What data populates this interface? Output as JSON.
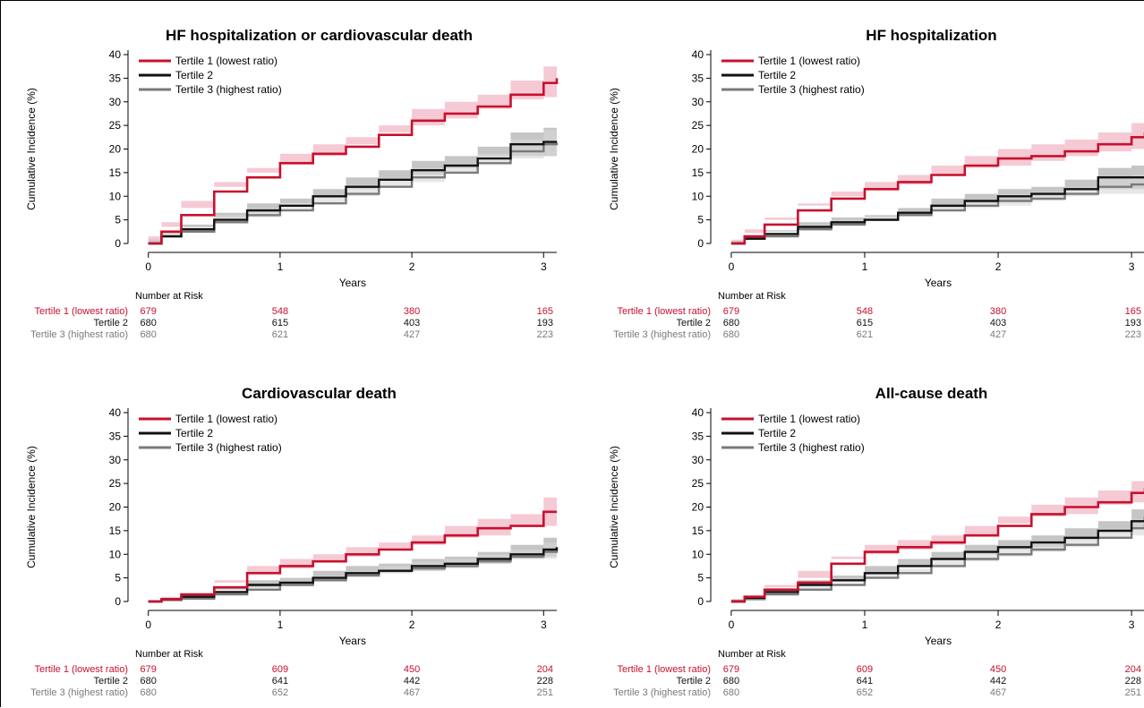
{
  "colors": {
    "tertile1": "#c8102e",
    "tertile1_band": "#f2b8c6",
    "tertile2": "#111111",
    "tertile2_band": "#9e9e9e",
    "tertile3": "#7a7a7a",
    "tertile3_band": "#d7d7d7",
    "axis": "#000000"
  },
  "chart_data": [
    {
      "type": "line",
      "title": "HF hospitalization or cardiovascular death",
      "xlabel": "Years",
      "ylabel": "Cumulative Incidence (%)",
      "xlim": [
        -0.1,
        3.1
      ],
      "ylim": [
        0,
        40
      ],
      "xticks": [
        "0",
        "1",
        "2",
        "3"
      ],
      "yticks": [
        "0",
        "5",
        "10",
        "15",
        "20",
        "25",
        "30",
        "35",
        "40"
      ],
      "legend_position": "top-left",
      "series": [
        {
          "name": "Tertile 1 (lowest ratio)",
          "x": [
            0,
            0.1,
            0.25,
            0.5,
            0.75,
            1.0,
            1.25,
            1.5,
            1.75,
            2.0,
            2.25,
            2.5,
            2.75,
            3.0,
            3.1
          ],
          "y": [
            0,
            2.5,
            6,
            11,
            14,
            17,
            19,
            20.5,
            23,
            26,
            27.5,
            29,
            31.5,
            34,
            35
          ],
          "lower": [
            0,
            1.5,
            4.5,
            9,
            12,
            15,
            17,
            18.5,
            21,
            23.5,
            25,
            26.5,
            28.5,
            30.5,
            31
          ],
          "upper": [
            0,
            3.5,
            7.5,
            13,
            16,
            19,
            21,
            22.5,
            25,
            28.5,
            30,
            31.5,
            34.5,
            37.5,
            39
          ]
        },
        {
          "name": "Tertile 2",
          "x": [
            0,
            0.1,
            0.25,
            0.5,
            0.75,
            1.0,
            1.25,
            1.5,
            1.75,
            2.0,
            2.25,
            2.5,
            2.75,
            3.0,
            3.1
          ],
          "y": [
            0,
            1.5,
            3,
            5,
            7,
            8,
            10,
            12,
            13.5,
            15.5,
            16.5,
            18,
            21,
            21.5,
            21.5
          ],
          "lower": [
            0,
            0.8,
            2,
            3.5,
            5.5,
            6.5,
            8.5,
            10,
            11.5,
            13.5,
            14.5,
            16,
            18.5,
            18.5,
            18.5
          ],
          "upper": [
            0,
            2.2,
            4,
            6.5,
            8.5,
            9.5,
            11.5,
            14,
            15.5,
            17.5,
            18.5,
            20.5,
            23.5,
            24.5,
            25
          ]
        },
        {
          "name": "Tertile 3 (highest ratio)",
          "x": [
            0,
            0.1,
            0.25,
            0.5,
            0.75,
            1.0,
            1.25,
            1.5,
            1.75,
            2.0,
            2.25,
            2.5,
            2.75,
            3.0,
            3.1
          ],
          "y": [
            0,
            1.5,
            2.5,
            4.5,
            6,
            7,
            8.5,
            10.5,
            12,
            14,
            15,
            17,
            19.5,
            21,
            21.5
          ],
          "lower": [
            0,
            0.8,
            1.5,
            3,
            4.5,
            5.5,
            7,
            8.5,
            10,
            12,
            13,
            15,
            17,
            18,
            18.5
          ],
          "upper": [
            0,
            2.2,
            3.5,
            6,
            7.5,
            8.5,
            10,
            12.5,
            14,
            16,
            17,
            19,
            22,
            24,
            24.5
          ]
        }
      ],
      "risk_table": {
        "header": "Number at Risk",
        "rows": [
          {
            "label": "Tertile 1 (lowest ratio)",
            "values": [
              "679",
              "548",
              "380",
              "165"
            ]
          },
          {
            "label": "Tertile 2",
            "values": [
              "680",
              "615",
              "403",
              "193"
            ]
          },
          {
            "label": "Tertile 3 (highest ratio)",
            "values": [
              "680",
              "621",
              "427",
              "223"
            ]
          }
        ]
      }
    },
    {
      "type": "line",
      "title": "HF hospitalization",
      "xlabel": "Years",
      "ylabel": "Cumulative Incidence (%)",
      "xlim": [
        -0.1,
        3.1
      ],
      "ylim": [
        0,
        40
      ],
      "xticks": [
        "0",
        "1",
        "2",
        "3"
      ],
      "yticks": [
        "0",
        "5",
        "10",
        "15",
        "20",
        "25",
        "30",
        "35",
        "40"
      ],
      "legend_position": "top-left",
      "series": [
        {
          "name": "Tertile 1 (lowest ratio)",
          "x": [
            0,
            0.1,
            0.25,
            0.5,
            0.75,
            1.0,
            1.25,
            1.5,
            1.75,
            2.0,
            2.25,
            2.5,
            2.75,
            3.0,
            3.1
          ],
          "y": [
            0,
            1.5,
            4,
            7,
            9.5,
            11.5,
            13,
            14.5,
            16.5,
            18,
            18.5,
            19.5,
            21,
            22.5,
            23.5
          ],
          "lower": [
            0,
            0.8,
            3,
            5.5,
            8,
            10,
            11.5,
            12.5,
            14.5,
            16,
            16.5,
            17.5,
            18.5,
            19.5,
            20
          ],
          "upper": [
            0,
            2.2,
            5,
            8.5,
            11,
            13,
            14.5,
            16.5,
            18.5,
            20,
            21,
            22,
            23.5,
            25.5,
            27
          ]
        },
        {
          "name": "Tertile 2",
          "x": [
            0,
            0.1,
            0.25,
            0.5,
            0.75,
            1.0,
            1.25,
            1.5,
            1.75,
            2.0,
            2.25,
            2.5,
            2.75,
            3.0,
            3.1
          ],
          "y": [
            0,
            1,
            2,
            3.5,
            4.5,
            5,
            6.5,
            8,
            9,
            10,
            10.5,
            11.5,
            14,
            14,
            14
          ],
          "lower": [
            0,
            0.5,
            1.2,
            2.5,
            3.5,
            4,
            5.5,
            6.5,
            7.5,
            8.5,
            9,
            10,
            11.5,
            11.5,
            11.5
          ],
          "upper": [
            0,
            1.5,
            2.8,
            4.5,
            5.5,
            6,
            7.5,
            9.5,
            10.5,
            11.5,
            12,
            13.5,
            16,
            16.5,
            16.5
          ]
        },
        {
          "name": "Tertile 3 (highest ratio)",
          "x": [
            0,
            0.1,
            0.25,
            0.5,
            0.75,
            1.0,
            1.25,
            1.5,
            1.75,
            2.0,
            2.25,
            2.5,
            2.75,
            3.0,
            3.1
          ],
          "y": [
            0,
            1,
            1.5,
            3,
            4,
            5,
            6,
            7,
            8,
            9,
            9.5,
            10.5,
            12,
            12.5,
            12.5
          ],
          "lower": [
            0,
            0.5,
            1,
            2,
            3,
            4,
            5,
            6,
            7,
            7.5,
            8,
            9,
            10,
            10.5,
            10.5
          ],
          "upper": [
            0,
            1.5,
            2.2,
            4,
            5,
            6,
            7,
            8,
            9,
            10.5,
            11,
            12,
            14,
            14.5,
            14.5
          ]
        }
      ],
      "risk_table": {
        "header": "Number at Risk",
        "rows": [
          {
            "label": "Tertile 1 (lowest ratio)",
            "values": [
              "679",
              "548",
              "380",
              "165"
            ]
          },
          {
            "label": "Tertile 2",
            "values": [
              "680",
              "615",
              "403",
              "193"
            ]
          },
          {
            "label": "Tertile 3 (highest ratio)",
            "values": [
              "680",
              "621",
              "427",
              "223"
            ]
          }
        ]
      }
    },
    {
      "type": "line",
      "title": "Cardiovascular death",
      "xlabel": "Years",
      "ylabel": "Cumulative Incidence (%)",
      "xlim": [
        -0.1,
        3.1
      ],
      "ylim": [
        0,
        40
      ],
      "xticks": [
        "0",
        "1",
        "2",
        "3"
      ],
      "yticks": [
        "0",
        "5",
        "10",
        "15",
        "20",
        "25",
        "30",
        "35",
        "40"
      ],
      "legend_position": "top-left",
      "series": [
        {
          "name": "Tertile 1 (lowest ratio)",
          "x": [
            0,
            0.1,
            0.25,
            0.5,
            0.75,
            1.0,
            1.25,
            1.5,
            1.75,
            2.0,
            2.25,
            2.5,
            2.75,
            3.0,
            3.1
          ],
          "y": [
            0,
            0.5,
            1.5,
            3,
            6,
            7.5,
            8.5,
            10,
            11,
            12.5,
            14,
            15.5,
            16,
            19,
            19
          ],
          "lower": [
            0,
            0.2,
            1,
            2,
            4.5,
            6,
            7,
            8.5,
            9.5,
            11,
            12,
            13.5,
            14,
            16,
            16
          ],
          "upper": [
            0,
            0.8,
            2,
            4,
            7.5,
            9,
            10,
            11.5,
            12.5,
            14,
            16,
            17.5,
            18.5,
            22,
            22.5
          ]
        },
        {
          "name": "Tertile 2",
          "x": [
            0,
            0.1,
            0.25,
            0.5,
            0.75,
            1.0,
            1.25,
            1.5,
            1.75,
            2.0,
            2.25,
            2.5,
            2.75,
            3.0,
            3.1
          ],
          "y": [
            0,
            0.5,
            1,
            2,
            3.5,
            4,
            5,
            6,
            6.5,
            7.5,
            8,
            9,
            10,
            11,
            11.5
          ],
          "lower": [
            0,
            0.2,
            0.6,
            1.3,
            2.5,
            3,
            4,
            4.5,
            5.5,
            6,
            6.5,
            7.5,
            8,
            9,
            9.5
          ],
          "upper": [
            0,
            0.8,
            1.5,
            2.8,
            4.5,
            5,
            6.5,
            7.5,
            8,
            9,
            9.5,
            10.5,
            12,
            13.5,
            14
          ]
        },
        {
          "name": "Tertile 3 (highest ratio)",
          "x": [
            0,
            0.1,
            0.25,
            0.5,
            0.75,
            1.0,
            1.25,
            1.5,
            1.75,
            2.0,
            2.25,
            2.5,
            2.75,
            3.0,
            3.1
          ],
          "y": [
            0,
            0.3,
            0.6,
            1.5,
            2.5,
            3.5,
            4.5,
            5.5,
            6.5,
            7,
            7.5,
            8.5,
            9.5,
            10.5,
            11
          ],
          "lower": [
            0,
            0.1,
            0.3,
            0.8,
            1.5,
            2.5,
            3.5,
            4.5,
            5.5,
            6,
            6.5,
            7,
            8,
            9,
            9
          ],
          "upper": [
            0,
            0.5,
            1,
            2.2,
            3.5,
            4.5,
            5.5,
            6.5,
            7.5,
            8.5,
            9,
            10,
            11,
            12.5,
            13
          ]
        }
      ],
      "risk_table": {
        "header": "Number at Risk",
        "rows": [
          {
            "label": "Tertile 1 (lowest ratio)",
            "values": [
              "679",
              "609",
              "450",
              "204"
            ]
          },
          {
            "label": "Tertile 2",
            "values": [
              "680",
              "641",
              "442",
              "228"
            ]
          },
          {
            "label": "Tertile 3 (highest ratio)",
            "values": [
              "680",
              "652",
              "467",
              "251"
            ]
          }
        ]
      }
    },
    {
      "type": "line",
      "title": "All-cause death",
      "xlabel": "Years",
      "ylabel": "Cumulative Incidence (%)",
      "xlim": [
        -0.1,
        3.1
      ],
      "ylim": [
        0,
        40
      ],
      "xticks": [
        "0",
        "1",
        "2",
        "3"
      ],
      "yticks": [
        "0",
        "5",
        "10",
        "15",
        "20",
        "25",
        "30",
        "35",
        "40"
      ],
      "legend_position": "top-left",
      "series": [
        {
          "name": "Tertile 1 (lowest ratio)",
          "x": [
            0,
            0.1,
            0.25,
            0.5,
            0.75,
            1.0,
            1.25,
            1.5,
            1.75,
            2.0,
            2.25,
            2.5,
            2.75,
            3.0,
            3.1
          ],
          "y": [
            0,
            1,
            2.5,
            4,
            8,
            10.5,
            11.5,
            12.5,
            14,
            16,
            18.5,
            20,
            21,
            23,
            24
          ],
          "lower": [
            0,
            0.5,
            1.5,
            3,
            6.5,
            9,
            10,
            11,
            12,
            14,
            16.5,
            18,
            18.5,
            20.5,
            21
          ],
          "upper": [
            0,
            1.5,
            3.5,
            5,
            9.5,
            12,
            13,
            14,
            16,
            18,
            20.5,
            22,
            23.5,
            25.5,
            27
          ]
        },
        {
          "name": "Tertile 2",
          "x": [
            0,
            0.1,
            0.25,
            0.5,
            0.75,
            1.0,
            1.25,
            1.5,
            1.75,
            2.0,
            2.25,
            2.5,
            2.75,
            3.0,
            3.1
          ],
          "y": [
            0,
            0.8,
            2,
            3.5,
            4.5,
            6,
            7.5,
            9,
            10.5,
            11.5,
            12.5,
            13.5,
            15,
            17,
            18
          ],
          "lower": [
            0,
            0.4,
            1.2,
            2.5,
            3.5,
            4.5,
            6,
            7.5,
            9,
            10,
            11,
            11.5,
            13,
            14.5,
            15.5
          ],
          "upper": [
            0,
            1.2,
            2.8,
            4.5,
            5.5,
            7.5,
            9,
            10.5,
            12,
            13,
            14,
            15.5,
            17,
            19.5,
            20.5
          ]
        },
        {
          "name": "Tertile 3 (highest ratio)",
          "x": [
            0,
            0.1,
            0.25,
            0.5,
            0.75,
            1.0,
            1.25,
            1.5,
            1.75,
            2.0,
            2.25,
            2.5,
            2.75,
            3.0,
            3.1
          ],
          "y": [
            0,
            0.5,
            1.5,
            2.5,
            3.5,
            5,
            6,
            7.5,
            9,
            10,
            11,
            12,
            13.5,
            15.5,
            16.5
          ],
          "lower": [
            0,
            0.2,
            1,
            1.8,
            2.5,
            4,
            5,
            6,
            7.5,
            8.5,
            9.5,
            10.5,
            11.5,
            13.5,
            14
          ],
          "upper": [
            0,
            0.8,
            2,
            3.2,
            4.5,
            6,
            7,
            9,
            10.5,
            11.5,
            12.5,
            13.5,
            15.5,
            17.5,
            19
          ]
        }
      ],
      "risk_table": {
        "header": "Number at Risk",
        "rows": [
          {
            "label": "Tertile 1 (lowest ratio)",
            "values": [
              "679",
              "609",
              "450",
              "204"
            ]
          },
          {
            "label": "Tertile 2",
            "values": [
              "680",
              "641",
              "442",
              "228"
            ]
          },
          {
            "label": "Tertile 3 (highest ratio)",
            "values": [
              "680",
              "652",
              "467",
              "251"
            ]
          }
        ]
      }
    }
  ]
}
